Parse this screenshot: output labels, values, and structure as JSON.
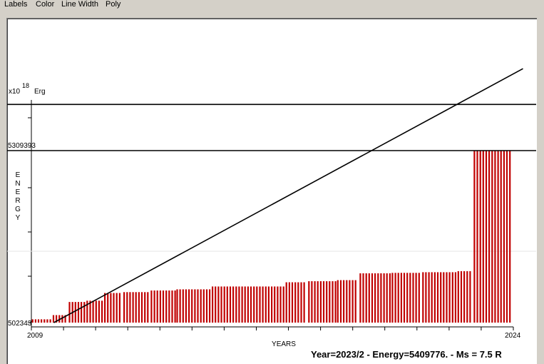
{
  "menu": [
    "Labels",
    "Color",
    "Line Width",
    "Poly"
  ],
  "status_text": "Year=2023/2 - Energy=5409776. - Ms = 7.5 R",
  "chart_data": {
    "type": "bar",
    "xlabel": "YEARS",
    "ylabel": "ENERGY",
    "y_multiplier": "x10",
    "y_exponent": "18",
    "y_unit": "Erg",
    "x_tick_labels": [
      "2009",
      "2024"
    ],
    "y_tick_labels": [
      "5309393",
      "502343"
    ],
    "xlim": [
      2009,
      2024
    ],
    "bar_color": "#c00000",
    "segments": [
      {
        "x_start": 2009.0,
        "x_end": 2009.65,
        "value": 595000
      },
      {
        "x_start": 2009.65,
        "x_end": 2010.15,
        "value": 711000
      },
      {
        "x_start": 2010.15,
        "x_end": 2010.7,
        "value": 1078000
      },
      {
        "x_start": 2010.7,
        "x_end": 2011.25,
        "value": 1115000
      },
      {
        "x_start": 2011.25,
        "x_end": 2011.85,
        "value": 1330000
      },
      {
        "x_start": 2011.85,
        "x_end": 2012.7,
        "value": 1355000
      },
      {
        "x_start": 2012.7,
        "x_end": 2013.5,
        "value": 1400000
      },
      {
        "x_start": 2013.5,
        "x_end": 2014.6,
        "value": 1432000
      },
      {
        "x_start": 2014.6,
        "x_end": 2016.9,
        "value": 1512000
      },
      {
        "x_start": 2016.9,
        "x_end": 2017.6,
        "value": 1630000
      },
      {
        "x_start": 2017.6,
        "x_end": 2018.5,
        "value": 1660000
      },
      {
        "x_start": 2018.5,
        "x_end": 2019.2,
        "value": 1690000
      },
      {
        "x_start": 2019.2,
        "x_end": 2020.2,
        "value": 1880000
      },
      {
        "x_start": 2020.2,
        "x_end": 2021.15,
        "value": 1893000
      },
      {
        "x_start": 2021.15,
        "x_end": 2022.25,
        "value": 1910000
      },
      {
        "x_start": 2022.25,
        "x_end": 2022.75,
        "value": 1940000
      },
      {
        "x_start": 2022.75,
        "x_end": 2023.95,
        "value": 5309393
      }
    ],
    "trend_line": {
      "x": [
        2009.7,
        2024.3
      ],
      "y": [
        502343,
        7600000
      ]
    },
    "horizontal_lines": [
      5309393,
      6600000
    ]
  }
}
